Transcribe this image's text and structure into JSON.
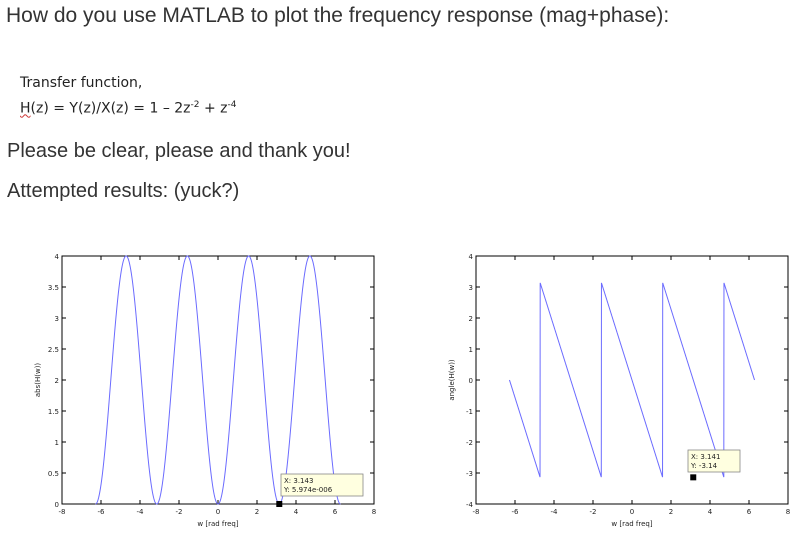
{
  "question": "How do you use MATLAB to plot the frequency response (mag+phase):",
  "transfer_function": {
    "label": "Transfer function,",
    "lhs_H": "H",
    "lhs_rest": "(z) = Y(z)/X(z) = 1 – 2z",
    "exp1": "-2",
    "mid": " + z",
    "exp2": "-4"
  },
  "line1": "Please be clear, please and thank you!",
  "line2": "Attempted results: (yuck?)",
  "colors": {
    "line": "#6b6bff",
    "axis": "#000000",
    "text": "#333333"
  },
  "chart_data": [
    {
      "type": "line",
      "xlabel": "w [rad freq]",
      "ylabel": "abs(H(w))",
      "xlim": [
        -8,
        8
      ],
      "ylim": [
        0,
        4
      ],
      "xticks": [
        "-8",
        "-6",
        "-4",
        "-2",
        "0",
        "2",
        "4",
        "6",
        "8"
      ],
      "yticks": [
        "0",
        "0.5",
        "1",
        "1.5",
        "2",
        "2.5",
        "3",
        "3.5",
        "4"
      ],
      "function": "|1 - 2e^{-2jw} + e^{-4jw}| = 4 sin^2(w) over w in [-2pi, 2pi]",
      "x_start": -6.283,
      "x_end": 6.283,
      "datatip": {
        "x": 3.143,
        "y": 5.974e-06,
        "line1": "X: 3.143",
        "line2": "Y: 5.974e-006"
      }
    },
    {
      "type": "line",
      "xlabel": "w [rad freq]",
      "ylabel": "angle(H(w))",
      "xlim": [
        -8,
        8
      ],
      "ylim": [
        -4,
        4
      ],
      "xticks": [
        "-8",
        "-6",
        "-4",
        "-2",
        "0",
        "2",
        "4",
        "6",
        "8"
      ],
      "yticks": [
        "-4",
        "-3",
        "-2",
        "-1",
        "0",
        "1",
        "2",
        "3",
        "4"
      ],
      "function": "angle(H(w)) = -2w wrapped to (-pi, pi] over w in [-2pi, 2pi]",
      "x_start": -6.283,
      "x_end": 6.283,
      "datatip": {
        "x": 3.141,
        "y": -3.14,
        "line1": "X: 3.141",
        "line2": "Y: -3.14"
      }
    }
  ]
}
